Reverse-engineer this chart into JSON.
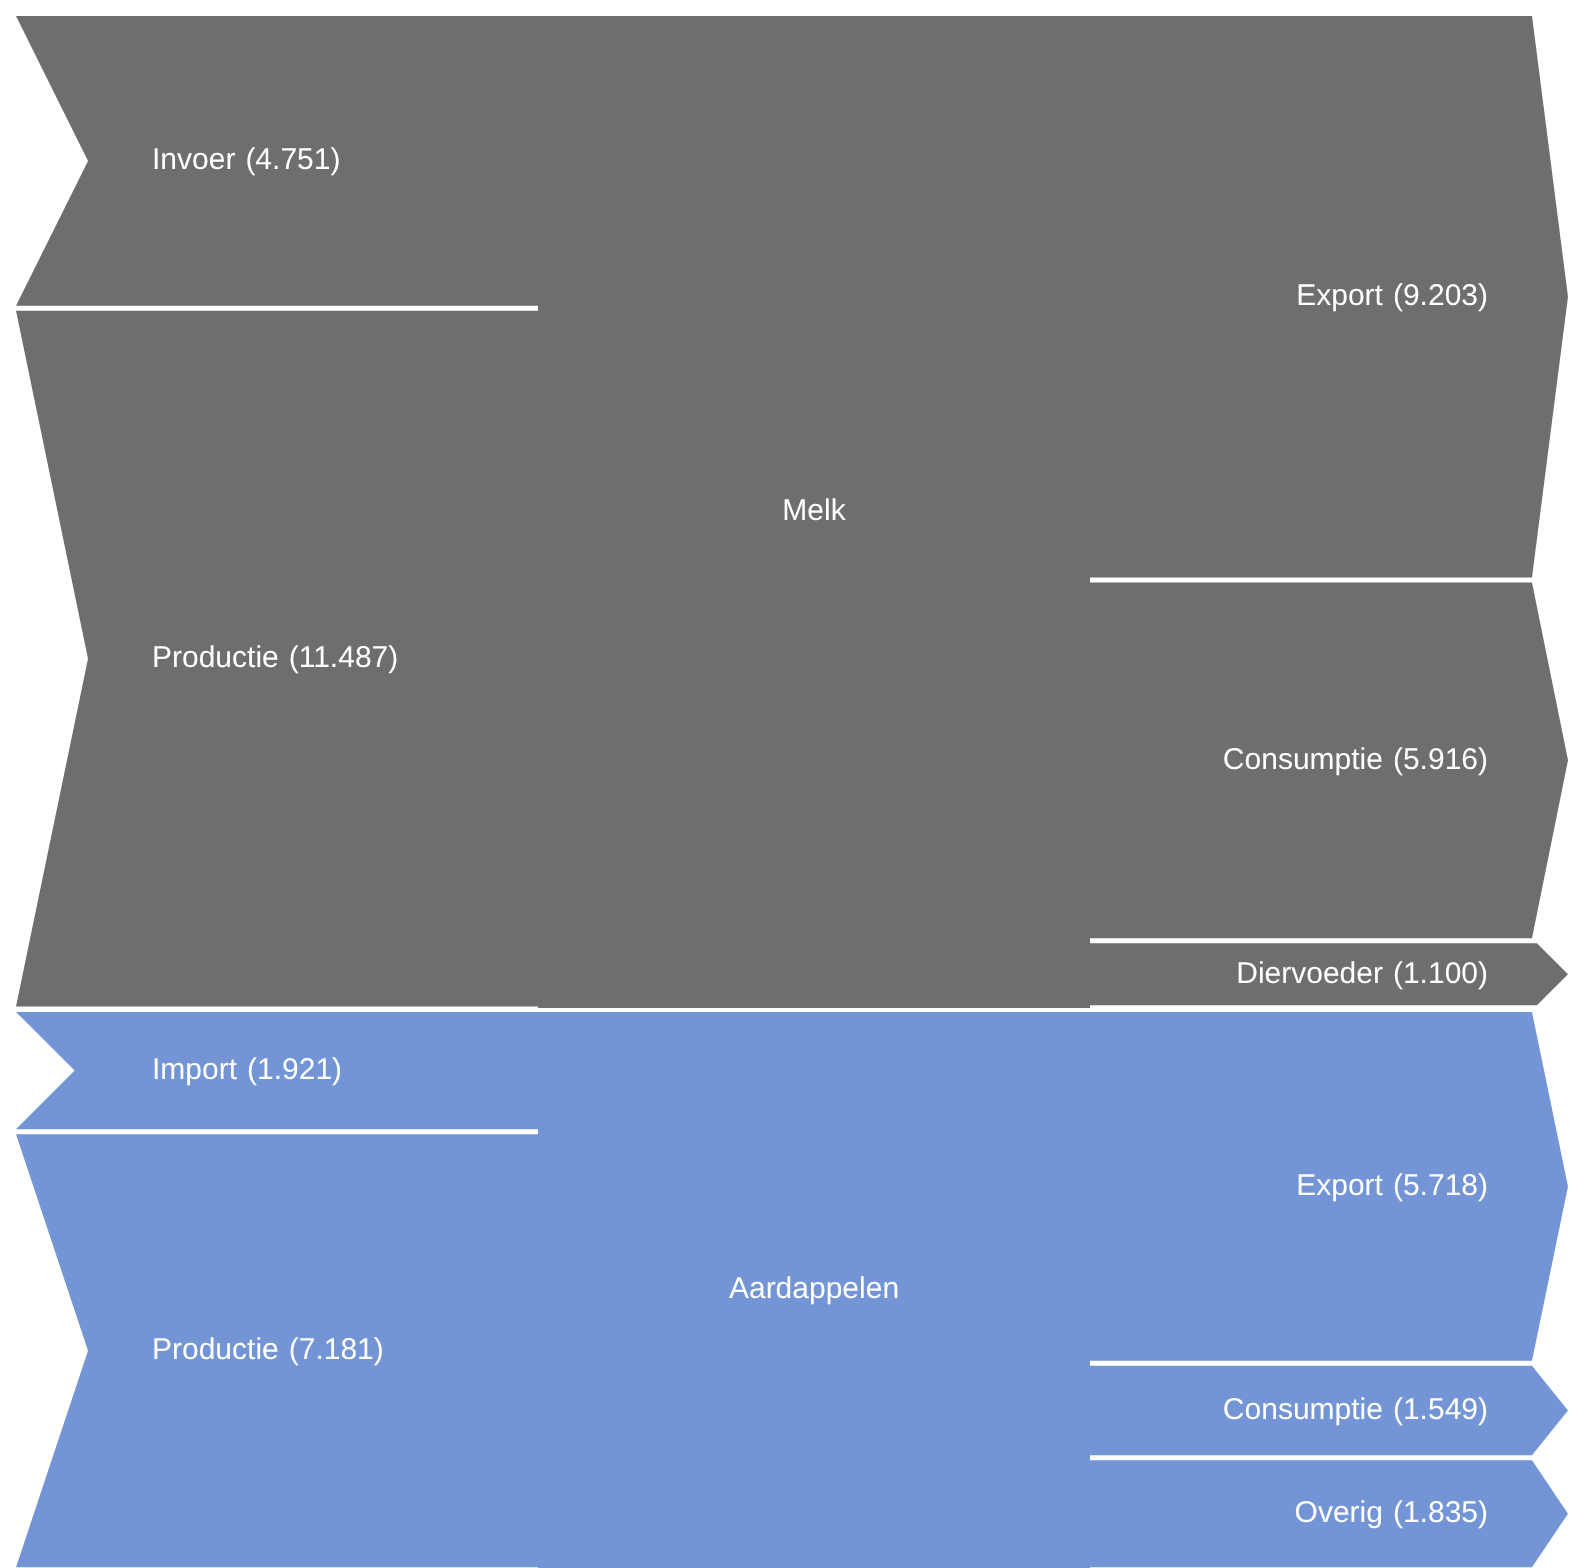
{
  "chart_data": [
    {
      "type": "other",
      "title": "Melk",
      "categories": [
        "Invoer",
        "Productie",
        "Export",
        "Consumptie",
        "Diervoeder"
      ],
      "series": [
        {
          "color": "#6f6e6f",
          "values": [
            4.751,
            11.487,
            null,
            null,
            null
          ],
          "value_labels": [
            "(4.751)",
            "(11.487)",
            null,
            null,
            null
          ]
        },
        {
          "color": "#6f6e6f",
          "values": [
            null,
            null,
            9.203,
            5.916,
            1.1
          ],
          "value_labels": [
            null,
            null,
            "(9.203)",
            "(5.916)",
            "(1.100)"
          ]
        }
      ]
    },
    {
      "type": "other",
      "title": "Aardappelen",
      "categories": [
        "Import",
        "Productie",
        "Export",
        "Consumptie",
        "Overig"
      ],
      "series": [
        {
          "color": "#7395d6",
          "values": [
            1.921,
            7.181,
            null,
            null,
            null
          ],
          "value_labels": [
            "(1.921)",
            "(7.181)",
            null,
            null,
            null
          ]
        },
        {
          "color": "#7395d6",
          "values": [
            null,
            null,
            5.718,
            1.549,
            1.835
          ],
          "value_labels": [
            null,
            null,
            "(5.718)",
            "(1.549)",
            "(1.835)"
          ]
        }
      ]
    }
  ]
}
